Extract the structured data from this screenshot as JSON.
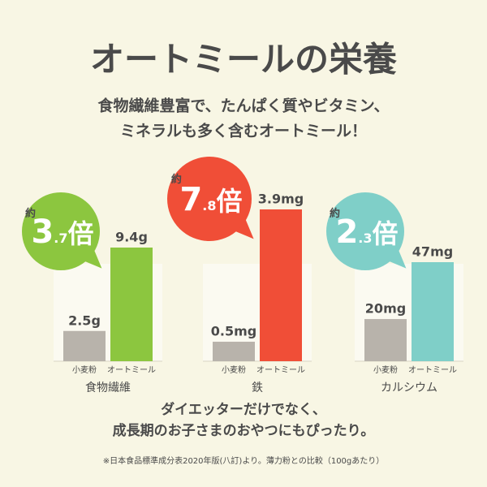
{
  "title": "オートミールの栄養",
  "subtitle": [
    "食物繊維豊富で、たんぱく質やビタミン、",
    "ミネラルも多く含むオートミール！"
  ],
  "chart_data": [
    {
      "type": "bar",
      "xlabel": "食物繊維",
      "categories": [
        "小麦粉",
        "オートミール"
      ],
      "values": [
        2.5,
        9.4
      ],
      "value_labels": [
        "2.5g",
        "9.4g"
      ],
      "colors": [
        "#b8b3ab",
        "#8cc63f"
      ],
      "annotation": {
        "prefix": "約",
        "whole": "3",
        "fraction": ".7",
        "suffix": "倍"
      }
    },
    {
      "type": "bar",
      "xlabel": "鉄",
      "categories": [
        "小麦粉",
        "オートミール"
      ],
      "values": [
        0.5,
        3.9
      ],
      "value_labels": [
        "0.5mg",
        "3.9mg"
      ],
      "colors": [
        "#b8b3ab",
        "#f04e37"
      ],
      "annotation": {
        "prefix": "約",
        "whole": "7",
        "fraction": ".8",
        "suffix": "倍"
      }
    },
    {
      "type": "bar",
      "xlabel": "カルシウム",
      "categories": [
        "小麦粉",
        "オートミール"
      ],
      "values": [
        20,
        47
      ],
      "value_labels": [
        "20mg",
        "47mg"
      ],
      "colors": [
        "#b8b3ab",
        "#7fcfc8"
      ],
      "annotation": {
        "prefix": "約",
        "whole": "2",
        "fraction": ".3",
        "suffix": "倍"
      }
    }
  ],
  "footer": [
    "ダイエッターだけでなく、",
    "成長期のお子さまのおやつにもぴったり。"
  ],
  "note": "※日本食品標準成分表2020年版(八訂)より。薄力粉との比較（100gあたり）"
}
